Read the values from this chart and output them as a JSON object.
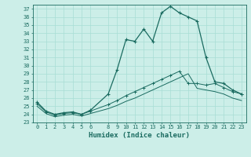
{
  "xlabel": "Humidex (Indice chaleur)",
  "background_color": "#cceee8",
  "grid_color": "#a8ddd5",
  "line_color": "#1a6b60",
  "xlim": [
    -0.5,
    23.5
  ],
  "ylim": [
    23,
    37.5
  ],
  "xticks": [
    0,
    1,
    2,
    3,
    4,
    5,
    6,
    8,
    9,
    10,
    11,
    12,
    13,
    14,
    15,
    16,
    17,
    18,
    19,
    20,
    21,
    22,
    23
  ],
  "yticks": [
    23,
    24,
    25,
    26,
    27,
    28,
    29,
    30,
    31,
    32,
    33,
    34,
    35,
    36,
    37
  ],
  "line1_x": [
    0,
    1,
    2,
    3,
    4,
    5,
    6,
    8,
    9,
    10,
    11,
    12,
    13,
    14,
    15,
    16,
    17,
    18,
    19,
    20,
    21,
    22,
    23
  ],
  "line1_y": [
    25.5,
    24.4,
    24.0,
    24.2,
    24.3,
    24.0,
    24.5,
    26.5,
    29.5,
    33.2,
    33.0,
    34.5,
    33.0,
    36.5,
    37.3,
    36.5,
    36.0,
    35.5,
    31.0,
    28.0,
    27.8,
    27.0,
    26.5
  ],
  "line2_x": [
    0,
    1,
    2,
    3,
    4,
    5,
    6,
    8,
    9,
    10,
    11,
    12,
    13,
    14,
    15,
    16,
    17,
    18,
    19,
    20,
    21,
    22,
    23
  ],
  "line2_y": [
    25.3,
    24.3,
    23.9,
    24.1,
    24.2,
    24.0,
    24.4,
    25.2,
    25.7,
    26.3,
    26.8,
    27.3,
    27.8,
    28.3,
    28.8,
    29.3,
    27.8,
    27.8,
    27.6,
    27.8,
    27.3,
    26.8,
    26.5
  ],
  "line3_x": [
    0,
    1,
    2,
    3,
    4,
    5,
    6,
    8,
    9,
    10,
    11,
    12,
    13,
    14,
    15,
    16,
    17,
    18,
    19,
    20,
    21,
    22,
    23
  ],
  "line3_y": [
    25.0,
    24.1,
    23.7,
    23.9,
    24.0,
    23.8,
    24.1,
    24.7,
    25.1,
    25.6,
    26.0,
    26.5,
    27.0,
    27.5,
    28.0,
    28.5,
    29.0,
    27.2,
    27.0,
    26.8,
    26.5,
    26.0,
    25.7
  ]
}
